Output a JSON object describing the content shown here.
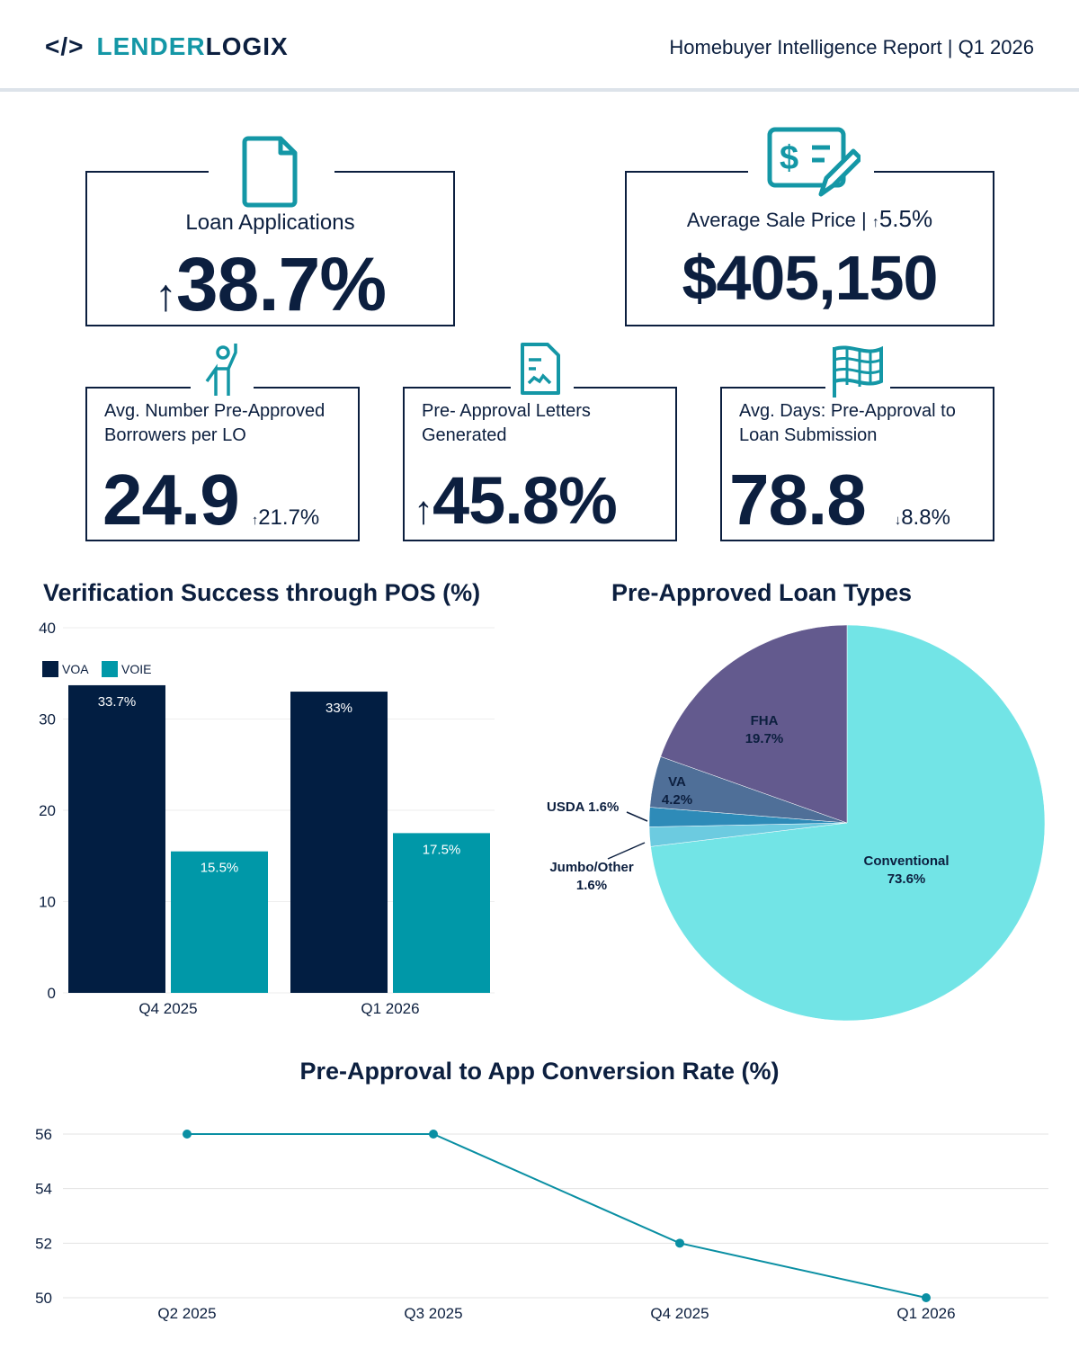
{
  "header": {
    "logo_left": "LENDER",
    "logo_right": "LOGIX",
    "report_title": "Homebuyer Intelligence Report | Q1 2026"
  },
  "kpis": {
    "loan_apps": {
      "label": "Loan Applications",
      "value": "38.7%",
      "direction": "up",
      "icon": "document-icon"
    },
    "sale_price": {
      "label": "Average Sale Price",
      "change": "5.5%",
      "value": "$405,150",
      "icon": "invoice-pen-icon"
    },
    "preapproved_borrowers": {
      "label": "Avg. Number Pre-Approved Borrowers per LO",
      "value": "24.9",
      "change": "21.7%",
      "change_dir": "up",
      "icon": "person-icon"
    },
    "letters": {
      "label": "Pre- Approval Letters Generated",
      "value": "45.8%",
      "direction": "up",
      "icon": "letter-icon"
    },
    "days": {
      "label": "Avg. Days: Pre-Approval to Loan Submission",
      "value": "78.8",
      "change": "8.8%",
      "change_dir": "down",
      "icon": "flag-icon"
    }
  },
  "chart_data": [
    {
      "type": "bar",
      "title": "Verification Success through POS (%)",
      "categories": [
        "Q4 2025",
        "Q1 2026"
      ],
      "series": [
        {
          "name": "VOA",
          "values": [
            33.7,
            33
          ],
          "labels": [
            "33.7%",
            "33%"
          ],
          "color": "#021e42"
        },
        {
          "name": "VOIE",
          "values": [
            15.5,
            17.5
          ],
          "labels": [
            "15.5%",
            "17.5%"
          ],
          "color": "#0098a8"
        }
      ],
      "ylim": [
        0,
        40
      ],
      "yticks": [
        "0",
        "10",
        "20",
        "30",
        "40"
      ],
      "legend": "top-left",
      "grid": true
    },
    {
      "type": "pie",
      "title": "Pre-Approved Loan Types",
      "slices": [
        {
          "name": "Conventional",
          "value": 73.6,
          "label": "73.6%",
          "color": "#72e4e6"
        },
        {
          "name": "Jumbo/Other",
          "value": 1.6,
          "label": "1.6%",
          "color": "#6ccbe0"
        },
        {
          "name": "USDA",
          "value": 1.6,
          "label": "1.6%",
          "color": "#2e8bb8"
        },
        {
          "name": "VA",
          "value": 4.2,
          "label": "4.2%",
          "color": "#4f6f98"
        },
        {
          "name": "FHA",
          "value": 19.7,
          "label": "19.7%",
          "color": "#635a8e"
        }
      ]
    },
    {
      "type": "line",
      "title": "Pre-Approval to App Conversion Rate (%)",
      "categories": [
        "Q2 2025",
        "Q3 2025",
        "Q4 2025",
        "Q1 2026"
      ],
      "values": [
        56,
        56,
        52,
        50
      ],
      "ylim": [
        50,
        56
      ],
      "yticks": [
        "50",
        "52",
        "54",
        "56"
      ],
      "color": "#0a8fa3",
      "grid": true
    }
  ]
}
